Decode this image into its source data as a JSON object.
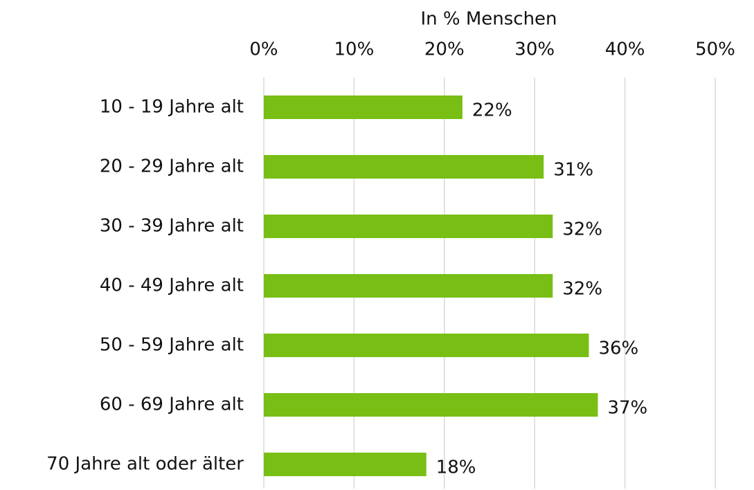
{
  "chart_data": {
    "type": "bar",
    "orientation": "horizontal",
    "x_label": "In % Menschen",
    "categories": [
      "10 - 19 Jahre alt",
      "20 - 29 Jahre alt",
      "30 - 39 Jahre alt",
      "40 - 49 Jahre alt",
      "50 - 59 Jahre alt",
      "60 - 69 Jahre alt",
      "70 Jahre alt oder älter"
    ],
    "values": [
      22,
      31,
      32,
      32,
      36,
      37,
      18
    ],
    "value_labels": [
      "22%",
      "31%",
      "32%",
      "32%",
      "36%",
      "37%",
      "18%"
    ],
    "color": "#78be14",
    "xlim": [
      0,
      50
    ],
    "xticks": [
      {
        "value": 0,
        "label": "0%"
      },
      {
        "value": 10,
        "label": "10%"
      },
      {
        "value": 20,
        "label": "20%"
      },
      {
        "value": 30,
        "label": "30%"
      },
      {
        "value": 40,
        "label": "40%"
      },
      {
        "value": 50,
        "label": "50%"
      }
    ],
    "grid": true
  }
}
